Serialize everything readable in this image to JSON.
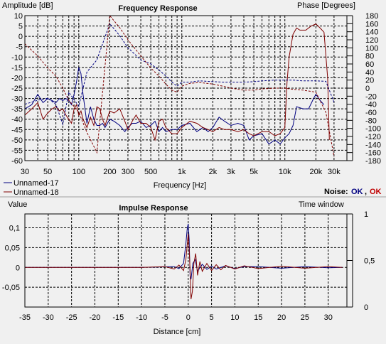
{
  "chart_data": [
    {
      "type": "line",
      "title": "Frequency Response",
      "xlabel": "Frequency [Hz]",
      "ylabel": "Amplitude [dB]",
      "y2label": "Phase [Degrees]",
      "x_scale": "log",
      "xlim": [
        30,
        40000
      ],
      "ylim": [
        -60,
        10
      ],
      "y2lim": [
        -180,
        180
      ],
      "x_ticks": [
        30,
        50,
        100,
        200,
        300,
        500,
        1000,
        2000,
        3000,
        5000,
        10000,
        20000,
        30000
      ],
      "x_tick_labels": [
        "30",
        "50",
        "100",
        "200",
        "300",
        "500",
        "1k",
        "2k",
        "3k",
        "5k",
        "10k",
        "20k",
        "30k"
      ],
      "y_ticks": [
        10,
        5,
        0,
        -5,
        -10,
        -15,
        -20,
        -25,
        -30,
        -35,
        -40,
        -45,
        -50,
        -55,
        -60
      ],
      "y_tick_labels": [
        "10",
        "5",
        "0",
        "-5",
        "-10",
        "-15",
        "-20",
        "-25",
        "-30",
        "-35",
        "-40",
        "-45",
        "-50",
        "-55",
        "-60"
      ],
      "y2_ticks": [
        180,
        160,
        140,
        120,
        100,
        80,
        60,
        40,
        20,
        0,
        -20,
        -40,
        -60,
        -80,
        -100,
        -120,
        -140,
        -160,
        -180
      ],
      "y2_tick_labels": [
        "180",
        "160",
        "140",
        "120",
        "100",
        "80",
        "60",
        "40",
        "20",
        "0",
        "-20",
        "-40",
        "-60",
        "-80",
        "-100",
        "-120",
        "-140",
        "-160",
        "-180"
      ],
      "grid": true,
      "legend": "bottom-left",
      "series": [
        {
          "name": "Unnamed-17",
          "color": "#000080",
          "kind": "amplitude",
          "x": [
            30,
            35,
            40,
            45,
            50,
            55,
            60,
            65,
            70,
            75,
            80,
            85,
            90,
            95,
            100,
            105,
            110,
            120,
            130,
            140,
            150,
            160,
            170,
            180,
            200,
            220,
            250,
            280,
            300,
            330,
            360,
            400,
            450,
            500,
            550,
            600,
            650,
            700,
            800,
            900,
            1000,
            1200,
            1400,
            1600,
            1800,
            2000,
            2300,
            2600,
            3000,
            3500,
            4000,
            4500,
            5000,
            6000,
            7000,
            8000,
            9000,
            10000,
            11000,
            12000,
            13000,
            15000,
            17000,
            19000,
            20000,
            22000,
            24000
          ],
          "y": [
            -35,
            -33,
            -28,
            -32,
            -30,
            -31,
            -32,
            -30,
            -31,
            -30,
            -31,
            -33,
            -28,
            -22,
            -15,
            -18,
            -28,
            -42,
            -34,
            -40,
            -43,
            -43,
            -42,
            -44,
            -40,
            -41,
            -43,
            -46,
            -44,
            -42,
            -42,
            -41,
            -44,
            -43,
            -41,
            -46,
            -44,
            -46,
            -45,
            -45,
            -43,
            -42,
            -46,
            -44,
            -46,
            -44,
            -39,
            -41,
            -43,
            -42,
            -43,
            -50,
            -48,
            -47,
            -52,
            -50,
            -52,
            -49,
            -47,
            -43,
            -34,
            -35,
            -35,
            -30,
            -28,
            -31,
            -33
          ]
        },
        {
          "name": "Unnamed-18",
          "color": "#800000",
          "kind": "amplitude",
          "x": [
            30,
            35,
            40,
            45,
            50,
            55,
            60,
            65,
            70,
            75,
            80,
            85,
            90,
            95,
            100,
            105,
            110,
            120,
            130,
            140,
            150,
            160,
            170,
            180,
            200,
            220,
            250,
            280,
            300,
            330,
            360,
            400,
            450,
            500,
            550,
            600,
            650,
            700,
            800,
            900,
            1000,
            1200,
            1400,
            1600,
            1800,
            2000,
            2300,
            2600,
            3000,
            3500,
            4000,
            4500,
            5000,
            6000,
            7000,
            8000,
            9000,
            10000,
            10500,
            11000,
            12000,
            13000,
            14000,
            16000,
            18000,
            20000,
            22000,
            24000,
            26000,
            27000
          ],
          "y": [
            -38,
            -35,
            -32,
            -40,
            -37,
            -35,
            -34,
            -36,
            -35,
            -38,
            -40,
            -42,
            -35,
            -33,
            -38,
            -36,
            -40,
            -44,
            -39,
            -43,
            -34,
            -35,
            -40,
            -43,
            -36,
            -37,
            -35,
            -41,
            -45,
            -41,
            -38,
            -42,
            -42,
            -44,
            -50,
            -41,
            -40,
            -44,
            -47,
            -47,
            -44,
            -41,
            -42,
            -44,
            -45,
            -46,
            -44,
            -45,
            -45,
            -46,
            -45,
            -47,
            -48,
            -46,
            -46,
            -48,
            -47,
            -44,
            -22,
            -10,
            1,
            4,
            3,
            3,
            5,
            6,
            4,
            2,
            -20,
            -50
          ]
        },
        {
          "name": "Unnamed-17",
          "color": "#000080",
          "kind": "phase",
          "x": [
            30,
            40,
            50,
            60,
            70,
            80,
            100,
            120,
            150,
            200,
            250,
            300,
            400,
            500,
            600,
            700,
            800,
            900,
            1000,
            1200,
            1500,
            2000,
            2500,
            3000,
            4000,
            5000,
            6000,
            8000,
            10000,
            12000,
            15000,
            20000,
            25000,
            30000
          ],
          "y": [
            -40,
            -30,
            -25,
            -40,
            -90,
            -10,
            -45,
            40,
            70,
            160,
            130,
            100,
            70,
            60,
            45,
            30,
            15,
            5,
            15,
            15,
            18,
            16,
            15,
            15,
            15,
            16,
            18,
            20,
            20,
            20,
            18,
            18,
            17,
            -35
          ]
        },
        {
          "name": "Unnamed-18",
          "color": "#800000",
          "kind": "phase",
          "x": [
            30,
            40,
            50,
            60,
            70,
            80,
            100,
            120,
            150,
            200,
            250,
            300,
            400,
            500,
            600,
            700,
            800,
            900,
            1000,
            1200,
            1500,
            2000,
            2500,
            3000,
            4000,
            5000,
            6000,
            8000,
            10000,
            12000,
            15000,
            20000,
            25000,
            30000
          ],
          "y": [
            110,
            80,
            50,
            30,
            0,
            -30,
            -60,
            -110,
            -160,
            180,
            150,
            120,
            80,
            50,
            30,
            10,
            -5,
            -10,
            5,
            12,
            14,
            10,
            5,
            0,
            -5,
            -5,
            -2,
            0,
            0,
            -3,
            -5,
            -10,
            -60,
            -170
          ]
        }
      ]
    },
    {
      "type": "line",
      "title": "Impulse Response",
      "xlabel": "Distance [cm]",
      "ylabel": "Value",
      "y2label": "Time window",
      "xlim": [
        -35,
        34
      ],
      "ylim": [
        -0.1,
        0.135
      ],
      "y2lim": [
        0,
        1
      ],
      "x_ticks": [
        -35,
        -30,
        -25,
        -20,
        -15,
        -10,
        -5,
        0,
        5,
        10,
        15,
        20,
        25,
        30
      ],
      "x_tick_labels": [
        "-35",
        "-30",
        "-25",
        "-20",
        "-15",
        "-10",
        "-5",
        "0",
        "5",
        "10",
        "15",
        "20",
        "25",
        "30"
      ],
      "y_ticks": [
        0.1,
        0.05,
        0,
        -0.05
      ],
      "y_tick_labels": [
        "0,1",
        "0,05",
        "0",
        "-0,05"
      ],
      "y2_ticks": [
        1,
        0.5,
        0
      ],
      "y2_tick_labels": [
        "1",
        "0,5",
        "0"
      ],
      "grid": true,
      "series": [
        {
          "name": "Unnamed-17",
          "color": "#000080",
          "x": [
            -35,
            -10,
            -3,
            -2,
            -1,
            -0.5,
            -0.2,
            0,
            0.2,
            0.4,
            0.6,
            1,
            1.5,
            2,
            3,
            4,
            5,
            6,
            8,
            10,
            12,
            15,
            20,
            25,
            30,
            33
          ],
          "y": [
            0,
            0,
            0.002,
            -0.003,
            0.01,
            0.06,
            0.1,
            0.11,
            0.07,
            -0.02,
            -0.03,
            0.01,
            0.02,
            -0.01,
            0.008,
            -0.005,
            0.003,
            -0.004,
            0.004,
            -0.003,
            0.002,
            0.002,
            -0.002,
            0.002,
            -0.001,
            0
          ]
        },
        {
          "name": "Unnamed-18",
          "color": "#800000",
          "x": [
            -35,
            -10,
            -5,
            -3,
            -2,
            -1,
            -0.5,
            0,
            0.3,
            0.6,
            0.9,
            1.2,
            1.6,
            2,
            2.5,
            3,
            4,
            5,
            6,
            7,
            8,
            10,
            12,
            15,
            20,
            25,
            30,
            33
          ],
          "y": [
            0,
            0,
            0.002,
            -0.004,
            0.006,
            -0.008,
            0.02,
            0.085,
            0.02,
            -0.08,
            -0.06,
            0.01,
            0.035,
            -0.02,
            0.015,
            -0.01,
            0.01,
            -0.008,
            0.007,
            -0.006,
            0.005,
            -0.004,
            0.004,
            -0.003,
            0.003,
            -0.002,
            0.002,
            0
          ]
        },
        {
          "name": "time-window",
          "color": "#000000",
          "x": [
            -35,
            33
          ],
          "y": [
            1,
            1
          ],
          "axis": "y2",
          "hidden": true
        }
      ]
    }
  ],
  "legend": {
    "items": [
      {
        "label": "Unnamed-17",
        "color": "#000080"
      },
      {
        "label": "Unnamed-18",
        "color": "#800000"
      }
    ],
    "noise_label": "Noise:",
    "noise_values": [
      {
        "text": "OK",
        "color": "#000080"
      },
      {
        "text": "OK",
        "color": "#c00000"
      }
    ],
    "noise_separator": ","
  }
}
